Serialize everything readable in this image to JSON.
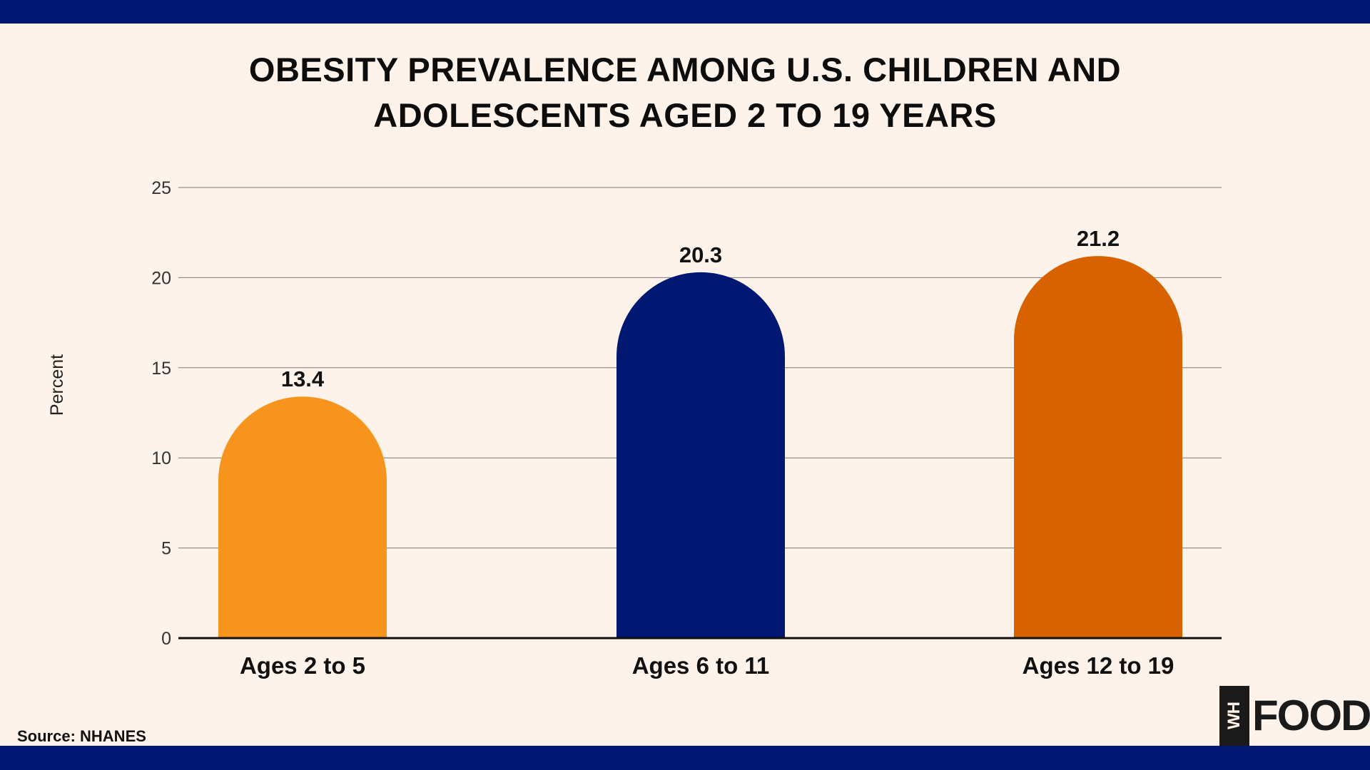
{
  "title_line1": "OBESITY PREVALENCE AMONG U.S. CHILDREN AND",
  "title_line2": "ADOLESCENTS AGED 2 TO 19 YEARS",
  "source": "Source: NHANES",
  "logo": {
    "box_text": "WH",
    "word": "FOODS"
  },
  "colors": {
    "band": "#001871",
    "background": "#fdf3ea",
    "bars": [
      "#f7941d",
      "#001871",
      "#d86100"
    ]
  },
  "chart_data": {
    "type": "bar",
    "categories": [
      "Ages 2 to 5",
      "Ages 6 to 11",
      "Ages 12 to 19"
    ],
    "values": [
      13.4,
      20.3,
      21.2
    ],
    "data_labels": [
      "13.4",
      "20.3",
      "21.2"
    ],
    "ylabel": "Percent",
    "xlabel": "",
    "ylim": [
      0,
      25
    ],
    "yticks": [
      0,
      5,
      10,
      15,
      20,
      25
    ],
    "grid": true,
    "legend": "none"
  }
}
